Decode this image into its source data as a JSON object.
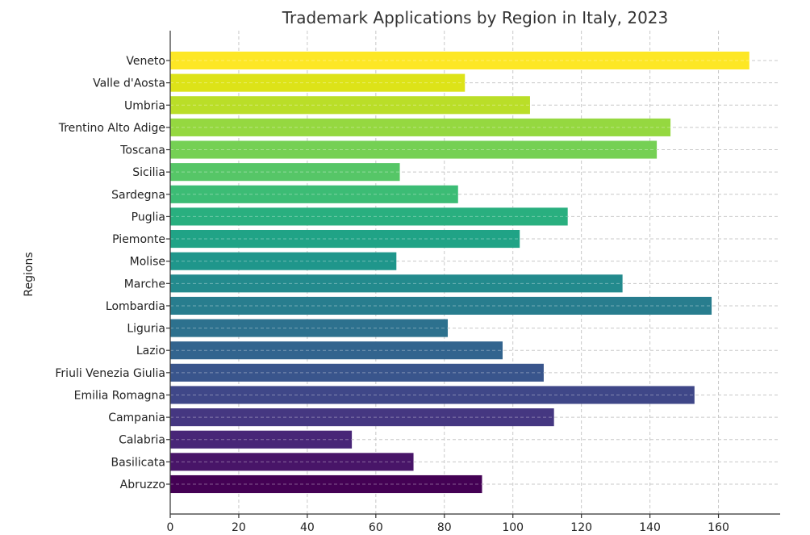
{
  "chart_data": {
    "type": "bar",
    "orientation": "horizontal",
    "title": "Trademark Applications by Region in Italy, 2023",
    "xlabel": "",
    "ylabel": "Regions",
    "xlim": [
      0,
      178
    ],
    "xticks": [
      0,
      20,
      40,
      60,
      80,
      100,
      120,
      140,
      160
    ],
    "grid": true,
    "categories": [
      "Abruzzo",
      "Basilicata",
      "Calabria",
      "Campania",
      "Emilia Romagna",
      "Friuli Venezia Giulia",
      "Lazio",
      "Liguria",
      "Lombardia",
      "Marche",
      "Molise",
      "Piemonte",
      "Puglia",
      "Sardegna",
      "Sicilia",
      "Toscana",
      "Trentino Alto Adige",
      "Umbria",
      "Valle d'Aosta",
      "Veneto"
    ],
    "values": [
      91,
      71,
      53,
      112,
      153,
      109,
      97,
      81,
      158,
      132,
      66,
      102,
      116,
      84,
      67,
      142,
      146,
      105,
      86,
      169
    ],
    "colors": [
      "#440154",
      "#481568",
      "#482677",
      "#453781",
      "#3f4788",
      "#39558c",
      "#32648e",
      "#2d718e",
      "#287d8e",
      "#238a8d",
      "#1f968b",
      "#20a386",
      "#29af7f",
      "#3cbc75",
      "#56c667",
      "#75d054",
      "#95d840",
      "#bade28",
      "#dde318",
      "#fde725"
    ]
  }
}
